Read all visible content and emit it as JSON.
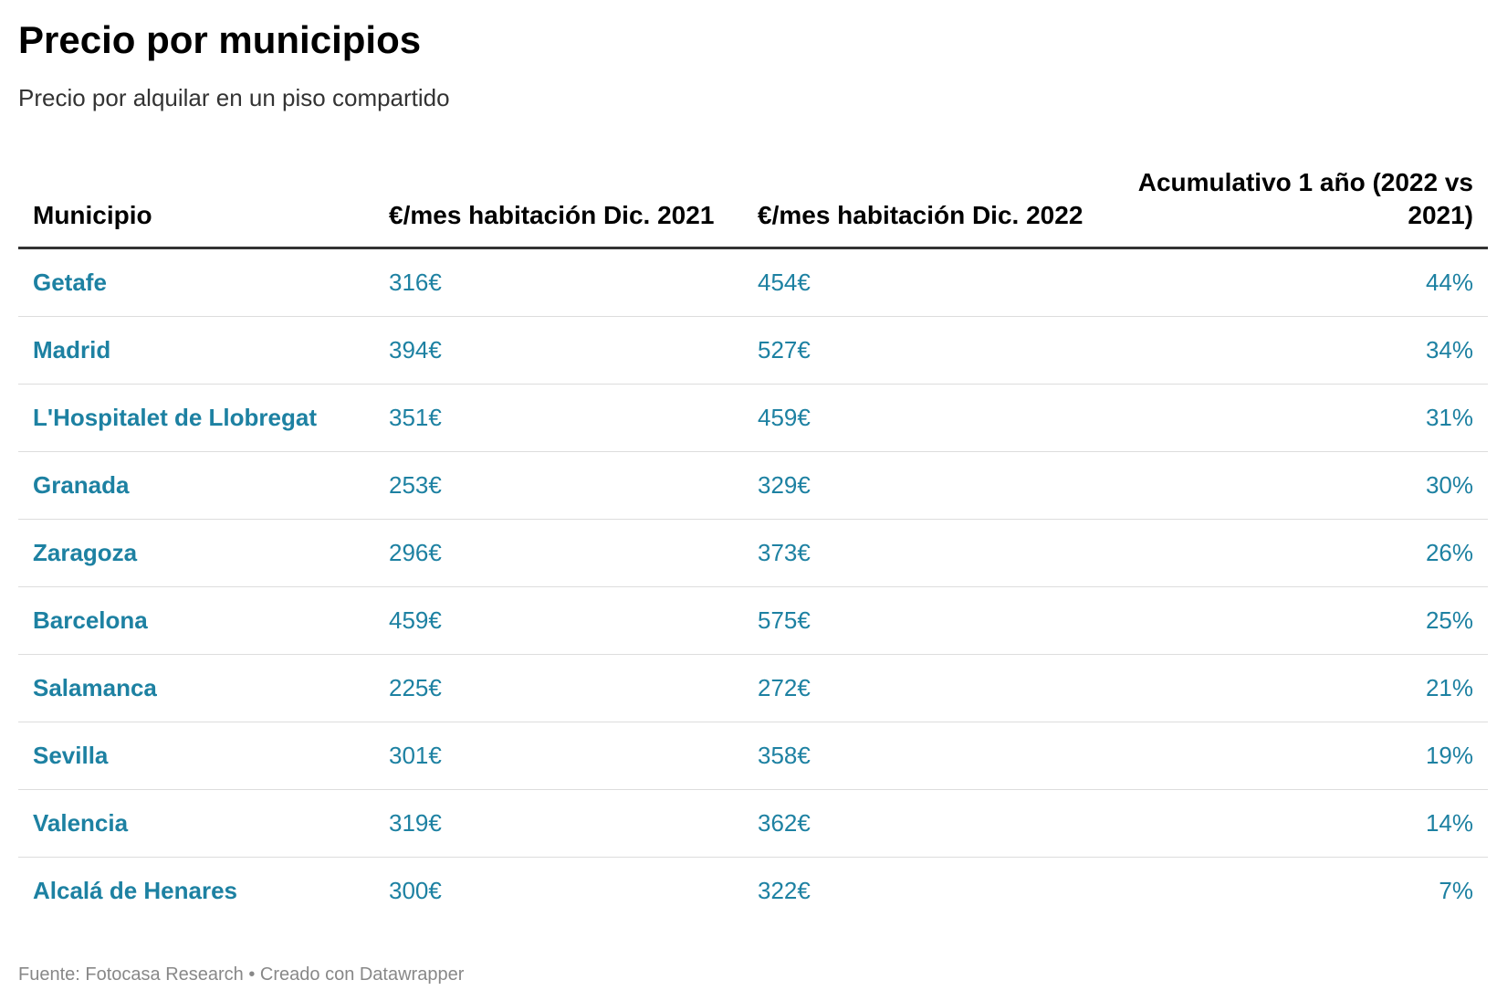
{
  "title": "Precio por municipios",
  "subtitle": "Precio por alquilar en un piso compartido",
  "footer": "Fuente: Fotocasa Research • Creado con Datawrapper",
  "colors": {
    "link_text": "#1d81a2",
    "header_rule": "#333333",
    "row_rule": "#dddddd"
  },
  "chart_data": {
    "type": "table",
    "columns": [
      "Municipio",
      "€/mes habitación Dic. 2021",
      "€/mes habitación Dic. 2022",
      "Acumulativo 1 año (2022 vs 2021)"
    ],
    "rows": [
      [
        "Getafe",
        "316€",
        "454€",
        "44%"
      ],
      [
        "Madrid",
        "394€",
        "527€",
        "34%"
      ],
      [
        "L'Hospitalet de Llobregat",
        "351€",
        "459€",
        "31%"
      ],
      [
        "Granada",
        "253€",
        "329€",
        "30%"
      ],
      [
        "Zaragoza",
        "296€",
        "373€",
        "26%"
      ],
      [
        "Barcelona",
        "459€",
        "575€",
        "25%"
      ],
      [
        "Salamanca",
        "225€",
        "272€",
        "21%"
      ],
      [
        "Sevilla",
        "301€",
        "358€",
        "19%"
      ],
      [
        "Valencia",
        "319€",
        "362€",
        "14%"
      ],
      [
        "Alcalá de Henares",
        "300€",
        "322€",
        "7%"
      ]
    ]
  }
}
